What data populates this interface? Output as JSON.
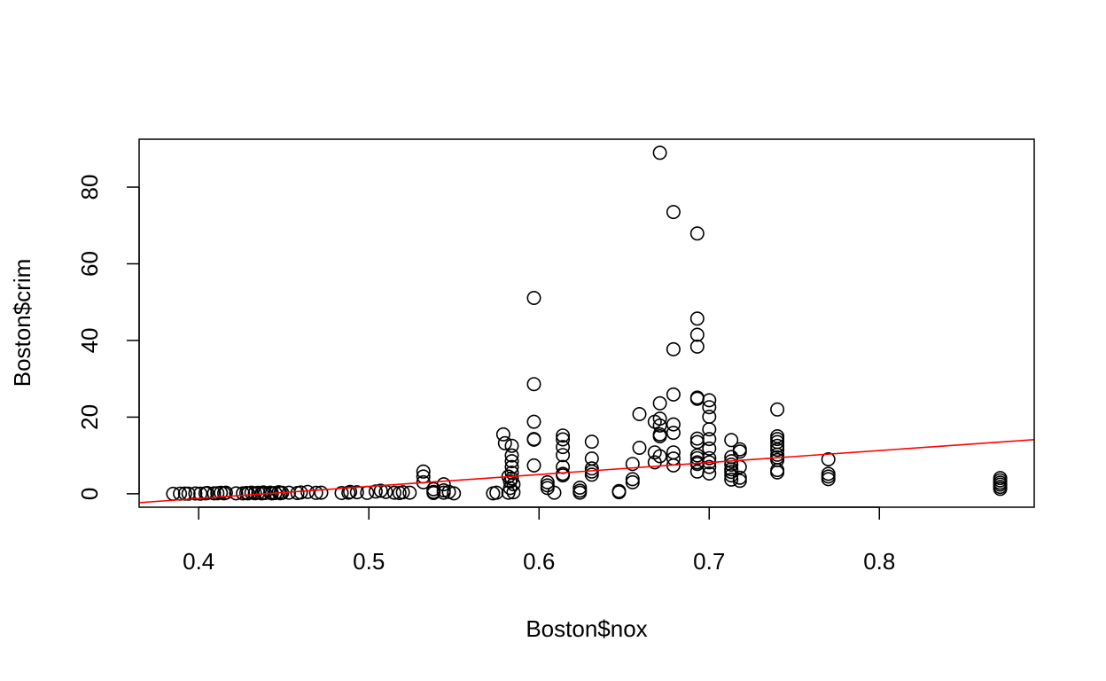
{
  "chart_data": {
    "type": "scatter",
    "xlabel": "Boston$nox",
    "ylabel": "Boston$crim",
    "xlim": [
      0.365,
      0.891
    ],
    "ylim": [
      -3.5,
      92.5
    ],
    "x_ticks": [
      0.4,
      0.5,
      0.6,
      0.7,
      0.8
    ],
    "x_tick_labels": [
      "0.4",
      "0.5",
      "0.6",
      "0.7",
      "0.8"
    ],
    "y_ticks": [
      0,
      20,
      40,
      60,
      80
    ],
    "y_tick_labels": [
      "0",
      "20",
      "40",
      "60",
      "80"
    ],
    "grid": false,
    "legend": "none",
    "point_style": "open-circle",
    "point_color": "#000000",
    "regression_line": {
      "color": "#ff0000",
      "intercept": -13.72,
      "slope": 31.25
    },
    "points": [
      [
        0.385,
        0.0
      ],
      [
        0.389,
        0.05
      ],
      [
        0.392,
        0.06
      ],
      [
        0.394,
        0.04
      ],
      [
        0.398,
        0.08
      ],
      [
        0.401,
        0.03
      ],
      [
        0.404,
        0.1
      ],
      [
        0.405,
        0.2
      ],
      [
        0.409,
        0.1
      ],
      [
        0.411,
        0.15
      ],
      [
        0.413,
        0.25
      ],
      [
        0.415,
        0.1
      ],
      [
        0.416,
        0.3
      ],
      [
        0.422,
        0.1
      ],
      [
        0.426,
        0.12
      ],
      [
        0.428,
        0.2
      ],
      [
        0.429,
        0.1
      ],
      [
        0.431,
        0.3
      ],
      [
        0.433,
        0.15
      ],
      [
        0.435,
        0.25
      ],
      [
        0.437,
        0.1
      ],
      [
        0.438,
        0.35
      ],
      [
        0.439,
        0.2
      ],
      [
        0.442,
        0.3
      ],
      [
        0.443,
        0.1
      ],
      [
        0.445,
        0.2
      ],
      [
        0.447,
        0.4
      ],
      [
        0.448,
        0.15
      ],
      [
        0.449,
        0.25
      ],
      [
        0.453,
        0.3
      ],
      [
        0.458,
        0.2
      ],
      [
        0.46,
        0.35
      ],
      [
        0.464,
        0.5
      ],
      [
        0.469,
        0.25
      ],
      [
        0.472,
        0.3
      ],
      [
        0.484,
        0.2
      ],
      [
        0.488,
        0.3
      ],
      [
        0.489,
        0.5
      ],
      [
        0.493,
        0.4
      ],
      [
        0.499,
        0.25
      ],
      [
        0.504,
        0.6
      ],
      [
        0.507,
        0.8
      ],
      [
        0.51,
        0.5
      ],
      [
        0.515,
        0.3
      ],
      [
        0.518,
        0.2
      ],
      [
        0.52,
        0.4
      ],
      [
        0.524,
        0.3
      ],
      [
        0.532,
        5.8
      ],
      [
        0.532,
        4.5
      ],
      [
        0.532,
        3.0
      ],
      [
        0.538,
        1.2
      ],
      [
        0.538,
        0.5
      ],
      [
        0.538,
        0.2
      ],
      [
        0.544,
        2.5
      ],
      [
        0.544,
        0.9
      ],
      [
        0.544,
        0.3
      ],
      [
        0.547,
        0.5
      ],
      [
        0.55,
        0.1
      ],
      [
        0.573,
        0.1
      ],
      [
        0.575,
        0.3
      ],
      [
        0.579,
        15.5
      ],
      [
        0.58,
        13.2
      ],
      [
        0.582,
        4.5
      ],
      [
        0.582,
        0.3
      ],
      [
        0.583,
        3.2
      ],
      [
        0.583,
        1.5
      ],
      [
        0.584,
        12.5
      ],
      [
        0.584,
        10.0
      ],
      [
        0.584,
        8.5
      ],
      [
        0.584,
        7.0
      ],
      [
        0.584,
        5.5
      ],
      [
        0.584,
        4.0
      ],
      [
        0.585,
        2.5
      ],
      [
        0.585,
        0.4
      ],
      [
        0.597,
        51.1
      ],
      [
        0.597,
        28.6
      ],
      [
        0.597,
        18.8
      ],
      [
        0.597,
        14.3
      ],
      [
        0.597,
        14.1
      ],
      [
        0.597,
        7.4
      ],
      [
        0.605,
        3.0
      ],
      [
        0.605,
        2.2
      ],
      [
        0.605,
        1.5
      ],
      [
        0.609,
        0.3
      ],
      [
        0.614,
        15.2
      ],
      [
        0.614,
        14.2
      ],
      [
        0.614,
        12.2
      ],
      [
        0.614,
        10.1
      ],
      [
        0.614,
        7.0
      ],
      [
        0.614,
        5.2
      ],
      [
        0.614,
        4.8
      ],
      [
        0.624,
        1.6
      ],
      [
        0.624,
        0.8
      ],
      [
        0.624,
        0.3
      ],
      [
        0.631,
        13.6
      ],
      [
        0.631,
        9.2
      ],
      [
        0.631,
        6.6
      ],
      [
        0.631,
        5.8
      ],
      [
        0.631,
        5.0
      ],
      [
        0.647,
        0.7
      ],
      [
        0.647,
        0.4
      ],
      [
        0.655,
        7.8
      ],
      [
        0.655,
        3.8
      ],
      [
        0.655,
        3.0
      ],
      [
        0.659,
        20.8
      ],
      [
        0.659,
        12.0
      ],
      [
        0.668,
        18.8
      ],
      [
        0.668,
        10.8
      ],
      [
        0.668,
        8.2
      ],
      [
        0.671,
        88.97
      ],
      [
        0.671,
        23.6
      ],
      [
        0.671,
        19.6
      ],
      [
        0.671,
        17.8
      ],
      [
        0.671,
        15.5
      ],
      [
        0.671,
        15.0
      ],
      [
        0.671,
        9.8
      ],
      [
        0.679,
        73.5
      ],
      [
        0.679,
        37.7
      ],
      [
        0.679,
        25.9
      ],
      [
        0.679,
        18.1
      ],
      [
        0.679,
        15.9
      ],
      [
        0.679,
        10.8
      ],
      [
        0.679,
        9.2
      ],
      [
        0.679,
        7.4
      ],
      [
        0.693,
        67.9
      ],
      [
        0.693,
        45.7
      ],
      [
        0.693,
        41.5
      ],
      [
        0.693,
        38.4
      ],
      [
        0.693,
        25.1
      ],
      [
        0.693,
        24.8
      ],
      [
        0.693,
        14.4
      ],
      [
        0.693,
        13.5
      ],
      [
        0.693,
        10.0
      ],
      [
        0.693,
        9.3
      ],
      [
        0.693,
        8.2
      ],
      [
        0.693,
        7.8
      ],
      [
        0.693,
        5.8
      ],
      [
        0.7,
        24.4
      ],
      [
        0.7,
        22.6
      ],
      [
        0.7,
        20.1
      ],
      [
        0.7,
        16.8
      ],
      [
        0.7,
        14.3
      ],
      [
        0.7,
        11.8
      ],
      [
        0.7,
        9.3
      ],
      [
        0.7,
        8.2
      ],
      [
        0.7,
        7.0
      ],
      [
        0.7,
        5.3
      ],
      [
        0.713,
        14.0
      ],
      [
        0.713,
        9.6
      ],
      [
        0.713,
        8.5
      ],
      [
        0.713,
        7.6
      ],
      [
        0.713,
        6.4
      ],
      [
        0.713,
        5.7
      ],
      [
        0.713,
        4.8
      ],
      [
        0.713,
        3.7
      ],
      [
        0.718,
        11.6
      ],
      [
        0.718,
        11.0
      ],
      [
        0.718,
        7.0
      ],
      [
        0.718,
        4.2
      ],
      [
        0.718,
        3.4
      ],
      [
        0.74,
        22.0
      ],
      [
        0.74,
        15.0
      ],
      [
        0.74,
        14.3
      ],
      [
        0.74,
        13.5
      ],
      [
        0.74,
        12.5
      ],
      [
        0.74,
        11.5
      ],
      [
        0.74,
        10.2
      ],
      [
        0.74,
        9.5
      ],
      [
        0.74,
        8.8
      ],
      [
        0.74,
        6.2
      ],
      [
        0.74,
        5.6
      ],
      [
        0.77,
        9.0
      ],
      [
        0.77,
        5.2
      ],
      [
        0.77,
        4.5
      ],
      [
        0.77,
        3.8
      ],
      [
        0.871,
        4.1
      ],
      [
        0.871,
        3.5
      ],
      [
        0.871,
        2.9
      ],
      [
        0.871,
        2.4
      ],
      [
        0.871,
        1.8
      ],
      [
        0.871,
        1.3
      ]
    ]
  }
}
